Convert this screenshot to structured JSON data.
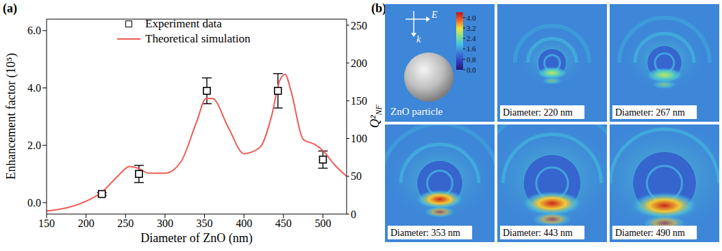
{
  "chart_data": {
    "type": "line",
    "panel_label": "(a)",
    "x_label": "Diameter of ZnO (nm)",
    "y_label": "Enhancement factor (10⁵)",
    "y2_label": "Q²NF",
    "xlim": [
      150,
      530
    ],
    "xticks": [
      150,
      200,
      250,
      300,
      350,
      400,
      450,
      500
    ],
    "ylim": [
      -0.4,
      6.4
    ],
    "yticks": [
      {
        "value": 0,
        "label": "0.0"
      },
      {
        "value": 2,
        "label": "2.0"
      },
      {
        "value": 4,
        "label": "4.0"
      },
      {
        "value": 6,
        "label": "6.0"
      }
    ],
    "y2lim": [
      0,
      258
    ],
    "y2ticks": [
      0,
      50,
      100,
      150,
      200,
      250
    ],
    "grid": false,
    "legend": "top",
    "series": [
      {
        "name": "Experiment data",
        "type": "scatter",
        "marker": "square",
        "color": "#000000",
        "x": [
          220,
          267,
          353,
          443,
          500
        ],
        "values": [
          0.3,
          1.0,
          3.9,
          3.9,
          1.5
        ],
        "errors": [
          0.05,
          0.3,
          0.45,
          0.6,
          0.3
        ]
      },
      {
        "name": "Theoretical simulation",
        "type": "line",
        "axis": "y2",
        "color": "#ee5b55",
        "x": [
          150,
          200,
          220,
          240,
          255,
          265,
          280,
          300,
          320,
          340,
          352,
          360,
          380,
          400,
          420,
          435,
          445,
          452,
          460,
          475,
          490,
          500,
          515,
          530
        ],
        "values": [
          4,
          17,
          29,
          50,
          63,
          61,
          54,
          54,
          69,
          122,
          153,
          153,
          115,
          80,
          88,
          130,
          176,
          185,
          161,
          99,
          92,
          84,
          65,
          50
        ]
      }
    ]
  },
  "figure_b": {
    "panel_label": "(b)",
    "particle_label": "ZnO particle",
    "e_label": "E",
    "k_label": "k",
    "colorbar": {
      "range": [
        0,
        4.4
      ],
      "ticks": [
        {
          "value": 4,
          "label": "4.0"
        },
        {
          "value": 3.2,
          "label": "3.2"
        },
        {
          "value": 2.4,
          "label": "2.4"
        },
        {
          "value": 1.6,
          "label": "1.6"
        },
        {
          "value": 0.8,
          "label": "0.8"
        },
        {
          "value": 0,
          "label": "0.0"
        }
      ]
    },
    "tiles": [
      {
        "diameter": 220,
        "label": "Diameter: 220 nm"
      },
      {
        "diameter": 267,
        "label": "Diameter: 267 nm"
      },
      {
        "diameter": 353,
        "label": "Diameter: 353 nm"
      },
      {
        "diameter": 443,
        "label": "Diameter: 443 nm"
      },
      {
        "diameter": 490,
        "label": "Diameter: 490 nm"
      }
    ]
  }
}
